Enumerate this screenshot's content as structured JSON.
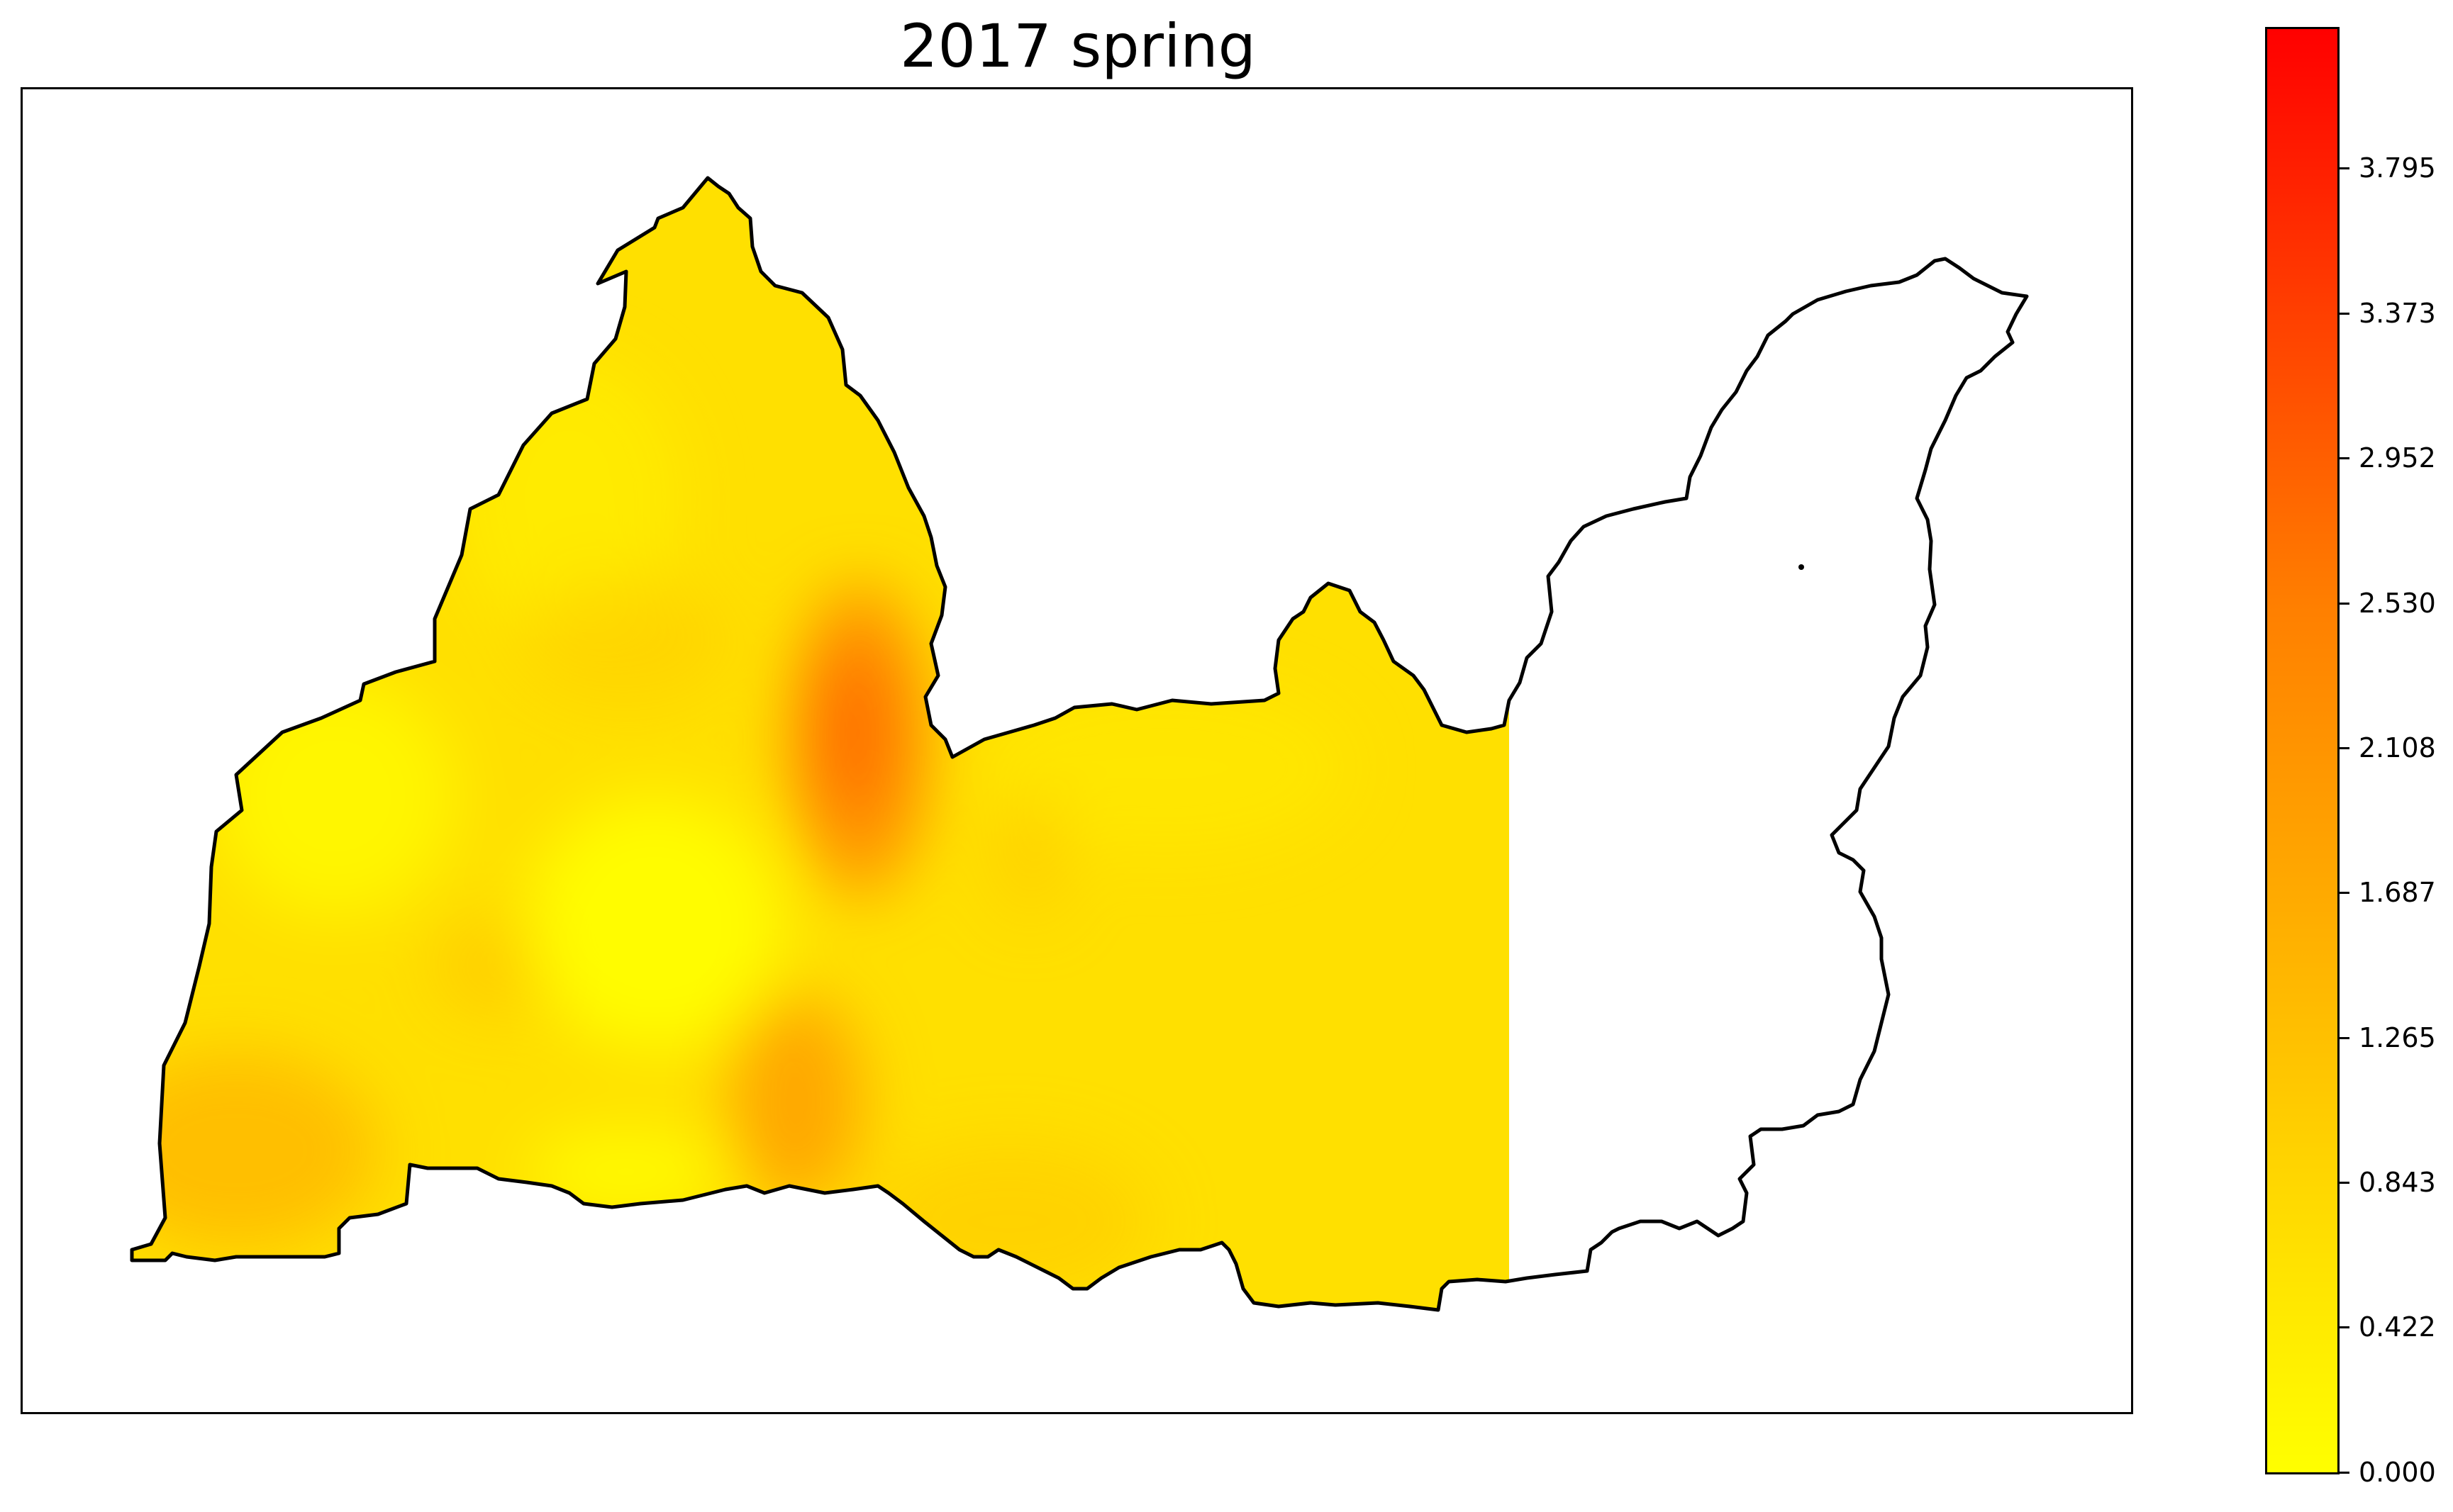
{
  "title": "2017 spring",
  "colorbar": {
    "min": 0.0,
    "max": 4.2,
    "colors": [
      "#ffff00",
      "#ffd700",
      "#ffaa00",
      "#ff7f00",
      "#ff4000",
      "#ff0000"
    ],
    "ticks": [
      "0.000",
      "0.422",
      "0.843",
      "1.265",
      "1.687",
      "2.108",
      "2.530",
      "2.952",
      "3.373",
      "3.795"
    ]
  },
  "map": {
    "background_color": "#ffffff",
    "outline_color": "#000000",
    "fill_base_color": "#ffe000"
  }
}
